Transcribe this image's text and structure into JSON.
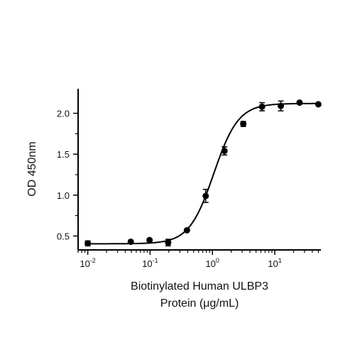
{
  "chart_data": {
    "type": "scatter",
    "title": "",
    "xlabel_lines": [
      "Biotinylated Human ULBP3",
      "Protein (μg/mL)"
    ],
    "ylabel": "OD 450nm",
    "x_scale": "log",
    "xlim": [
      0.007,
      55
    ],
    "ylim": [
      0.33,
      2.3
    ],
    "grid": false,
    "legend": "none",
    "x_ticks": [
      {
        "value": 0.01,
        "base": "10",
        "exp": "-2"
      },
      {
        "value": 0.1,
        "base": "10",
        "exp": "-1"
      },
      {
        "value": 1,
        "base": "10",
        "exp": "0"
      },
      {
        "value": 10,
        "base": "10",
        "exp": "1"
      }
    ],
    "y_ticks": [
      {
        "value": 0.5,
        "label": "0.5"
      },
      {
        "value": 1.0,
        "label": "1.0"
      },
      {
        "value": 1.5,
        "label": "1.5"
      },
      {
        "value": 2.0,
        "label": "2.0"
      }
    ],
    "y_minor_ticks": [
      0.75,
      1.25,
      1.75
    ],
    "points": [
      {
        "x": 0.01,
        "y": 0.41,
        "err": 0.03
      },
      {
        "x": 0.049,
        "y": 0.43,
        "err": 0.0
      },
      {
        "x": 0.098,
        "y": 0.45,
        "err": 0.0
      },
      {
        "x": 0.195,
        "y": 0.42,
        "err": 0.04
      },
      {
        "x": 0.39,
        "y": 0.57,
        "err": 0.0
      },
      {
        "x": 0.78,
        "y": 0.99,
        "err": 0.08
      },
      {
        "x": 1.56,
        "y": 1.54,
        "err": 0.05
      },
      {
        "x": 3.125,
        "y": 1.87,
        "err": 0.03
      },
      {
        "x": 6.25,
        "y": 2.08,
        "err": 0.05
      },
      {
        "x": 12.5,
        "y": 2.09,
        "err": 0.06
      },
      {
        "x": 25,
        "y": 2.13,
        "err": 0.0
      },
      {
        "x": 50,
        "y": 2.11,
        "err": 0.0
      }
    ],
    "fit": {
      "model": "4PL",
      "bottom": 0.405,
      "top": 2.12,
      "ec50": 1.05,
      "hill": 2.2
    },
    "colors": {
      "marker": "#000000",
      "line": "#000000",
      "axis": "#000000"
    }
  }
}
